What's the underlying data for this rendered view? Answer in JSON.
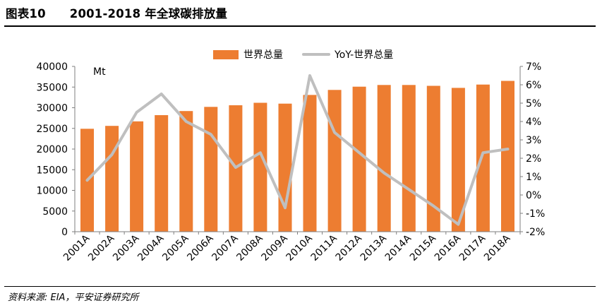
{
  "header": {
    "figure_number": "图表10",
    "title": "2001-2018 年全球碳排放量"
  },
  "footer": {
    "source": "资料来源: EIA，平安证券研究所"
  },
  "chart_data": {
    "type": "bar",
    "categories": [
      "2001A",
      "2002A",
      "2003A",
      "2004A",
      "2005A",
      "2006A",
      "2007A",
      "2008A",
      "2009A",
      "2010A",
      "2011A",
      "2012A",
      "2013A",
      "2014A",
      "2015A",
      "2016A",
      "2017A",
      "2018A"
    ],
    "series": [
      {
        "name": "世界总量",
        "type": "bar",
        "axis": "left",
        "color": "#ED7D31",
        "values": [
          24900,
          25600,
          26700,
          28200,
          29200,
          30200,
          30600,
          31200,
          31000,
          33100,
          34300,
          35100,
          35500,
          35500,
          35300,
          34800,
          35600,
          36500
        ]
      },
      {
        "name": "YoY-世界总量",
        "type": "line",
        "axis": "right",
        "color": "#BFBFBF",
        "values": [
          0.8,
          2.2,
          4.5,
          5.5,
          4.0,
          3.3,
          1.5,
          2.3,
          -0.7,
          6.5,
          3.4,
          2.3,
          1.2,
          0.3,
          -0.6,
          -1.6,
          2.3,
          2.5
        ]
      }
    ],
    "left_axis": {
      "unit_label": "Mt",
      "ylim": [
        0,
        40000
      ],
      "ticks": [
        "0",
        "5000",
        "10000",
        "15000",
        "20000",
        "25000",
        "30000",
        "35000",
        "40000"
      ]
    },
    "right_axis": {
      "ylim": [
        -2,
        7
      ],
      "ticks": [
        "-2%",
        "-1%",
        "0%",
        "1%",
        "2%",
        "3%",
        "4%",
        "5%",
        "6%",
        "7%"
      ]
    },
    "grid": false,
    "legend_position": "top-center"
  }
}
